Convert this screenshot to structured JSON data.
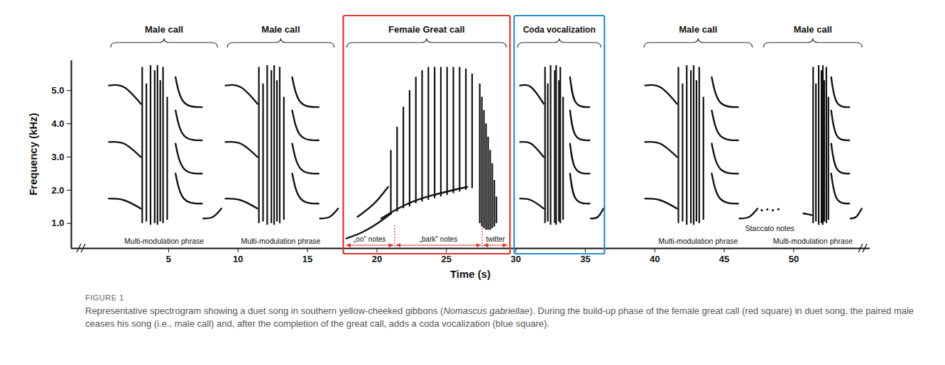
{
  "chart_data": {
    "type": "spectrogram",
    "xlabel": "Time (s)",
    "ylabel": "Frequency (kHz)",
    "xlim": [
      -2,
      55.5
    ],
    "ylim": [
      0.25,
      5.9
    ],
    "xticks": [
      5,
      10,
      15,
      20,
      25,
      30,
      35,
      40,
      45,
      50
    ],
    "yticks": [
      1,
      2,
      3,
      4,
      5
    ],
    "color": "#111111",
    "figure_label": "FIGURE 1",
    "caption": [
      "Representative spectrogram showing a duet song in southern yellow-cheeked gibbons (",
      "Nomascus gabriellae",
      "). During the build-up phase of the female great call (red square) in duet song, the paired male ceases his song (i.e., male call) and, after the completion of the great call, adds a coda vocalization (blue square)."
    ],
    "segments": [
      {
        "name": "Male call",
        "start": 0.6,
        "end": 8.8,
        "phrase_label": "Multi-modulation phrase",
        "contours": [
          [
            [
              0.7,
              1.75
            ],
            [
              1.8,
              1.7
            ],
            [
              3.0,
              1.45
            ]
          ],
          [
            [
              0.7,
              3.45
            ],
            [
              1.8,
              3.4
            ],
            [
              3.0,
              3.0
            ]
          ],
          [
            [
              0.7,
              5.15
            ],
            [
              1.8,
              5.1
            ],
            [
              3.0,
              4.6
            ]
          ],
          [
            [
              5.5,
              5.4
            ],
            [
              6.1,
              4.65
            ],
            [
              7.4,
              4.5
            ]
          ],
          [
            [
              5.5,
              4.4
            ],
            [
              6.1,
              3.65
            ],
            [
              7.4,
              3.5
            ]
          ],
          [
            [
              5.5,
              3.4
            ],
            [
              6.1,
              2.65
            ],
            [
              7.4,
              2.5
            ]
          ],
          [
            [
              5.5,
              2.5
            ],
            [
              6.1,
              1.75
            ],
            [
              7.4,
              1.6
            ]
          ],
          [
            [
              7.5,
              1.15
            ],
            [
              8.2,
              1.2
            ],
            [
              8.8,
              1.45
            ]
          ]
        ],
        "notes": [
          [
            3.1,
            1.0,
            5.7
          ],
          [
            3.4,
            1.05,
            5.2
          ],
          [
            3.7,
            0.95,
            5.75
          ],
          [
            4.0,
            1.0,
            5.6
          ],
          [
            4.2,
            0.95,
            5.75
          ],
          [
            4.4,
            1.05,
            5.3
          ],
          [
            4.6,
            1.0,
            5.7
          ],
          [
            4.9,
            1.1,
            4.8
          ]
        ]
      },
      {
        "name": "Male call",
        "start": 9.0,
        "end": 17.2,
        "phrase_label": "Multi-modulation phrase",
        "contours": [
          [
            [
              9.1,
              1.75
            ],
            [
              10.2,
              1.7
            ],
            [
              11.4,
              1.45
            ]
          ],
          [
            [
              9.1,
              3.45
            ],
            [
              10.2,
              3.4
            ],
            [
              11.4,
              3.0
            ]
          ],
          [
            [
              9.1,
              5.15
            ],
            [
              10.2,
              5.1
            ],
            [
              11.4,
              4.6
            ]
          ],
          [
            [
              13.9,
              5.4
            ],
            [
              14.5,
              4.65
            ],
            [
              15.8,
              4.5
            ]
          ],
          [
            [
              13.9,
              4.4
            ],
            [
              14.5,
              3.65
            ],
            [
              15.8,
              3.5
            ]
          ],
          [
            [
              13.9,
              3.4
            ],
            [
              14.5,
              2.65
            ],
            [
              15.8,
              2.5
            ]
          ],
          [
            [
              13.9,
              2.5
            ],
            [
              14.5,
              1.75
            ],
            [
              15.8,
              1.6
            ]
          ],
          [
            [
              15.9,
              1.15
            ],
            [
              16.6,
              1.2
            ],
            [
              17.2,
              1.45
            ]
          ]
        ],
        "notes": [
          [
            11.5,
            1.0,
            5.7
          ],
          [
            11.8,
            1.05,
            5.2
          ],
          [
            12.1,
            0.95,
            5.75
          ],
          [
            12.4,
            1.0,
            5.6
          ],
          [
            12.6,
            0.95,
            5.75
          ],
          [
            12.8,
            1.05,
            5.3
          ],
          [
            13.0,
            1.0,
            5.7
          ],
          [
            13.3,
            1.1,
            4.8
          ]
        ]
      },
      {
        "name": "Female Great call",
        "start": 17.6,
        "end": 29.6,
        "color": "#e0332b",
        "parts": [
          {
            "label": "„oo\" notes",
            "start": 17.7,
            "end": 21.3
          },
          {
            "label": "„bark\" notes",
            "start": 21.3,
            "end": 27.6
          },
          {
            "label": "twitter",
            "start": 27.6,
            "end": 29.5
          }
        ],
        "contours": [
          [
            [
              17.8,
              0.55
            ],
            [
              19.0,
              0.75
            ],
            [
              20.2,
              1.05
            ],
            [
              21.0,
              1.3
            ]
          ],
          [
            [
              18.6,
              1.2
            ],
            [
              19.8,
              1.6
            ],
            [
              20.8,
              2.1
            ]
          ],
          [
            [
              20.3,
              1.15
            ],
            [
              22.0,
              1.55
            ],
            [
              24.0,
              1.85
            ],
            [
              26.5,
              2.1
            ]
          ]
        ],
        "notes": [
          [
            21.0,
            1.25,
            3.2
          ],
          [
            21.45,
            1.35,
            3.9
          ],
          [
            21.9,
            1.45,
            4.5
          ],
          [
            22.35,
            1.5,
            5.0
          ],
          [
            22.8,
            1.6,
            5.4
          ],
          [
            23.25,
            1.65,
            5.6
          ],
          [
            23.7,
            1.7,
            5.7
          ],
          [
            24.15,
            1.75,
            5.7
          ],
          [
            24.6,
            1.8,
            5.7
          ],
          [
            25.05,
            1.85,
            5.7
          ],
          [
            25.5,
            1.9,
            5.7
          ],
          [
            25.95,
            1.95,
            5.7
          ],
          [
            26.4,
            2.0,
            5.65
          ],
          [
            26.85,
            2.05,
            5.5
          ],
          [
            27.4,
            1.0,
            5.2
          ],
          [
            27.55,
            0.9,
            4.8
          ],
          [
            27.7,
            0.85,
            4.4
          ],
          [
            27.85,
            0.8,
            4.0
          ],
          [
            28.0,
            0.8,
            3.6
          ],
          [
            28.15,
            0.8,
            3.2
          ],
          [
            28.3,
            0.85,
            2.8
          ],
          [
            28.45,
            0.9,
            2.3
          ],
          [
            28.6,
            1.0,
            1.8
          ]
        ]
      },
      {
        "name": "Coda vocalization",
        "start": 29.9,
        "end": 36.4,
        "color": "#2a8fd0",
        "contours": [
          [
            [
              30.3,
              1.75
            ],
            [
              31.1,
              1.7
            ],
            [
              32.0,
              1.45
            ]
          ],
          [
            [
              30.3,
              3.45
            ],
            [
              31.1,
              3.4
            ],
            [
              32.0,
              3.0
            ]
          ],
          [
            [
              30.3,
              5.15
            ],
            [
              31.1,
              5.1
            ],
            [
              32.0,
              4.6
            ]
          ],
          [
            [
              33.9,
              5.4
            ],
            [
              34.3,
              4.65
            ],
            [
              35.3,
              4.5
            ]
          ],
          [
            [
              33.9,
              4.4
            ],
            [
              34.3,
              3.65
            ],
            [
              35.3,
              3.5
            ]
          ],
          [
            [
              33.9,
              3.4
            ],
            [
              34.3,
              2.65
            ],
            [
              35.3,
              2.5
            ]
          ],
          [
            [
              33.9,
              2.5
            ],
            [
              34.3,
              1.75
            ],
            [
              35.3,
              1.6
            ]
          ],
          [
            [
              35.4,
              1.15
            ],
            [
              35.9,
              1.2
            ],
            [
              36.3,
              1.45
            ]
          ]
        ],
        "notes": [
          [
            32.1,
            1.0,
            5.7
          ],
          [
            32.3,
            1.05,
            5.2
          ],
          [
            32.5,
            0.95,
            5.75
          ],
          [
            32.8,
            1.0,
            5.6
          ],
          [
            32.9,
            0.95,
            5.75
          ],
          [
            33.1,
            1.05,
            5.3
          ],
          [
            33.2,
            1.0,
            5.7
          ],
          [
            33.4,
            1.1,
            4.8
          ]
        ]
      },
      {
        "name": "Male call",
        "start": 39.0,
        "end": 47.3,
        "phrase_label": "Multi-modulation phrase",
        "contours": [
          [
            [
              39.3,
              1.75
            ],
            [
              40.4,
              1.7
            ],
            [
              41.6,
              1.45
            ]
          ],
          [
            [
              39.3,
              3.45
            ],
            [
              40.4,
              3.4
            ],
            [
              41.6,
              3.0
            ]
          ],
          [
            [
              39.3,
              5.15
            ],
            [
              40.4,
              5.1
            ],
            [
              41.6,
              4.6
            ]
          ],
          [
            [
              44.1,
              5.4
            ],
            [
              44.7,
              4.65
            ],
            [
              46.0,
              4.5
            ]
          ],
          [
            [
              44.1,
              4.4
            ],
            [
              44.7,
              3.65
            ],
            [
              46.0,
              3.5
            ]
          ],
          [
            [
              44.1,
              3.4
            ],
            [
              44.7,
              2.65
            ],
            [
              46.0,
              2.5
            ]
          ],
          [
            [
              44.1,
              2.5
            ],
            [
              44.7,
              1.75
            ],
            [
              46.0,
              1.6
            ]
          ],
          [
            [
              46.1,
              1.15
            ],
            [
              46.8,
              1.2
            ],
            [
              47.4,
              1.45
            ]
          ]
        ],
        "notes": [
          [
            41.7,
            1.0,
            5.7
          ],
          [
            42.0,
            1.05,
            5.2
          ],
          [
            42.3,
            0.95,
            5.75
          ],
          [
            42.6,
            1.0,
            5.6
          ],
          [
            42.8,
            0.95,
            5.75
          ],
          [
            43.0,
            1.05,
            5.3
          ],
          [
            43.2,
            1.0,
            5.7
          ],
          [
            43.5,
            1.1,
            4.8
          ]
        ]
      },
      {
        "name": "Male call",
        "start": 47.6,
        "end": 55.2,
        "phrase_label": "Multi-modulation phrase",
        "staccato_label": "Staccato notes",
        "staccato": [
          [
            47.7,
            1.4
          ],
          [
            48.1,
            1.42
          ],
          [
            48.5,
            1.4
          ],
          [
            48.9,
            1.43
          ]
        ],
        "contours": [
          [
            [
              50.7,
              1.3
            ],
            [
              51.0,
              1.28
            ],
            [
              51.3,
              1.25
            ]
          ],
          [
            [
              52.7,
              5.4
            ],
            [
              53.1,
              4.65
            ],
            [
              54.0,
              4.5
            ]
          ],
          [
            [
              52.7,
              4.4
            ],
            [
              53.1,
              3.65
            ],
            [
              54.0,
              3.5
            ]
          ],
          [
            [
              52.7,
              3.4
            ],
            [
              53.1,
              2.65
            ],
            [
              54.0,
              2.5
            ]
          ],
          [
            [
              52.7,
              2.5
            ],
            [
              53.1,
              1.75
            ],
            [
              54.0,
              1.6
            ]
          ],
          [
            [
              54.1,
              1.15
            ],
            [
              54.5,
              1.2
            ],
            [
              54.9,
              1.45
            ]
          ]
        ],
        "notes": [
          [
            51.4,
            1.0,
            5.7
          ],
          [
            51.6,
            1.05,
            5.2
          ],
          [
            51.8,
            0.95,
            5.75
          ],
          [
            52.0,
            1.0,
            5.6
          ],
          [
            52.1,
            0.95,
            5.75
          ],
          [
            52.2,
            1.05,
            5.3
          ],
          [
            52.35,
            1.0,
            5.7
          ],
          [
            52.5,
            1.1,
            4.8
          ]
        ]
      }
    ]
  }
}
